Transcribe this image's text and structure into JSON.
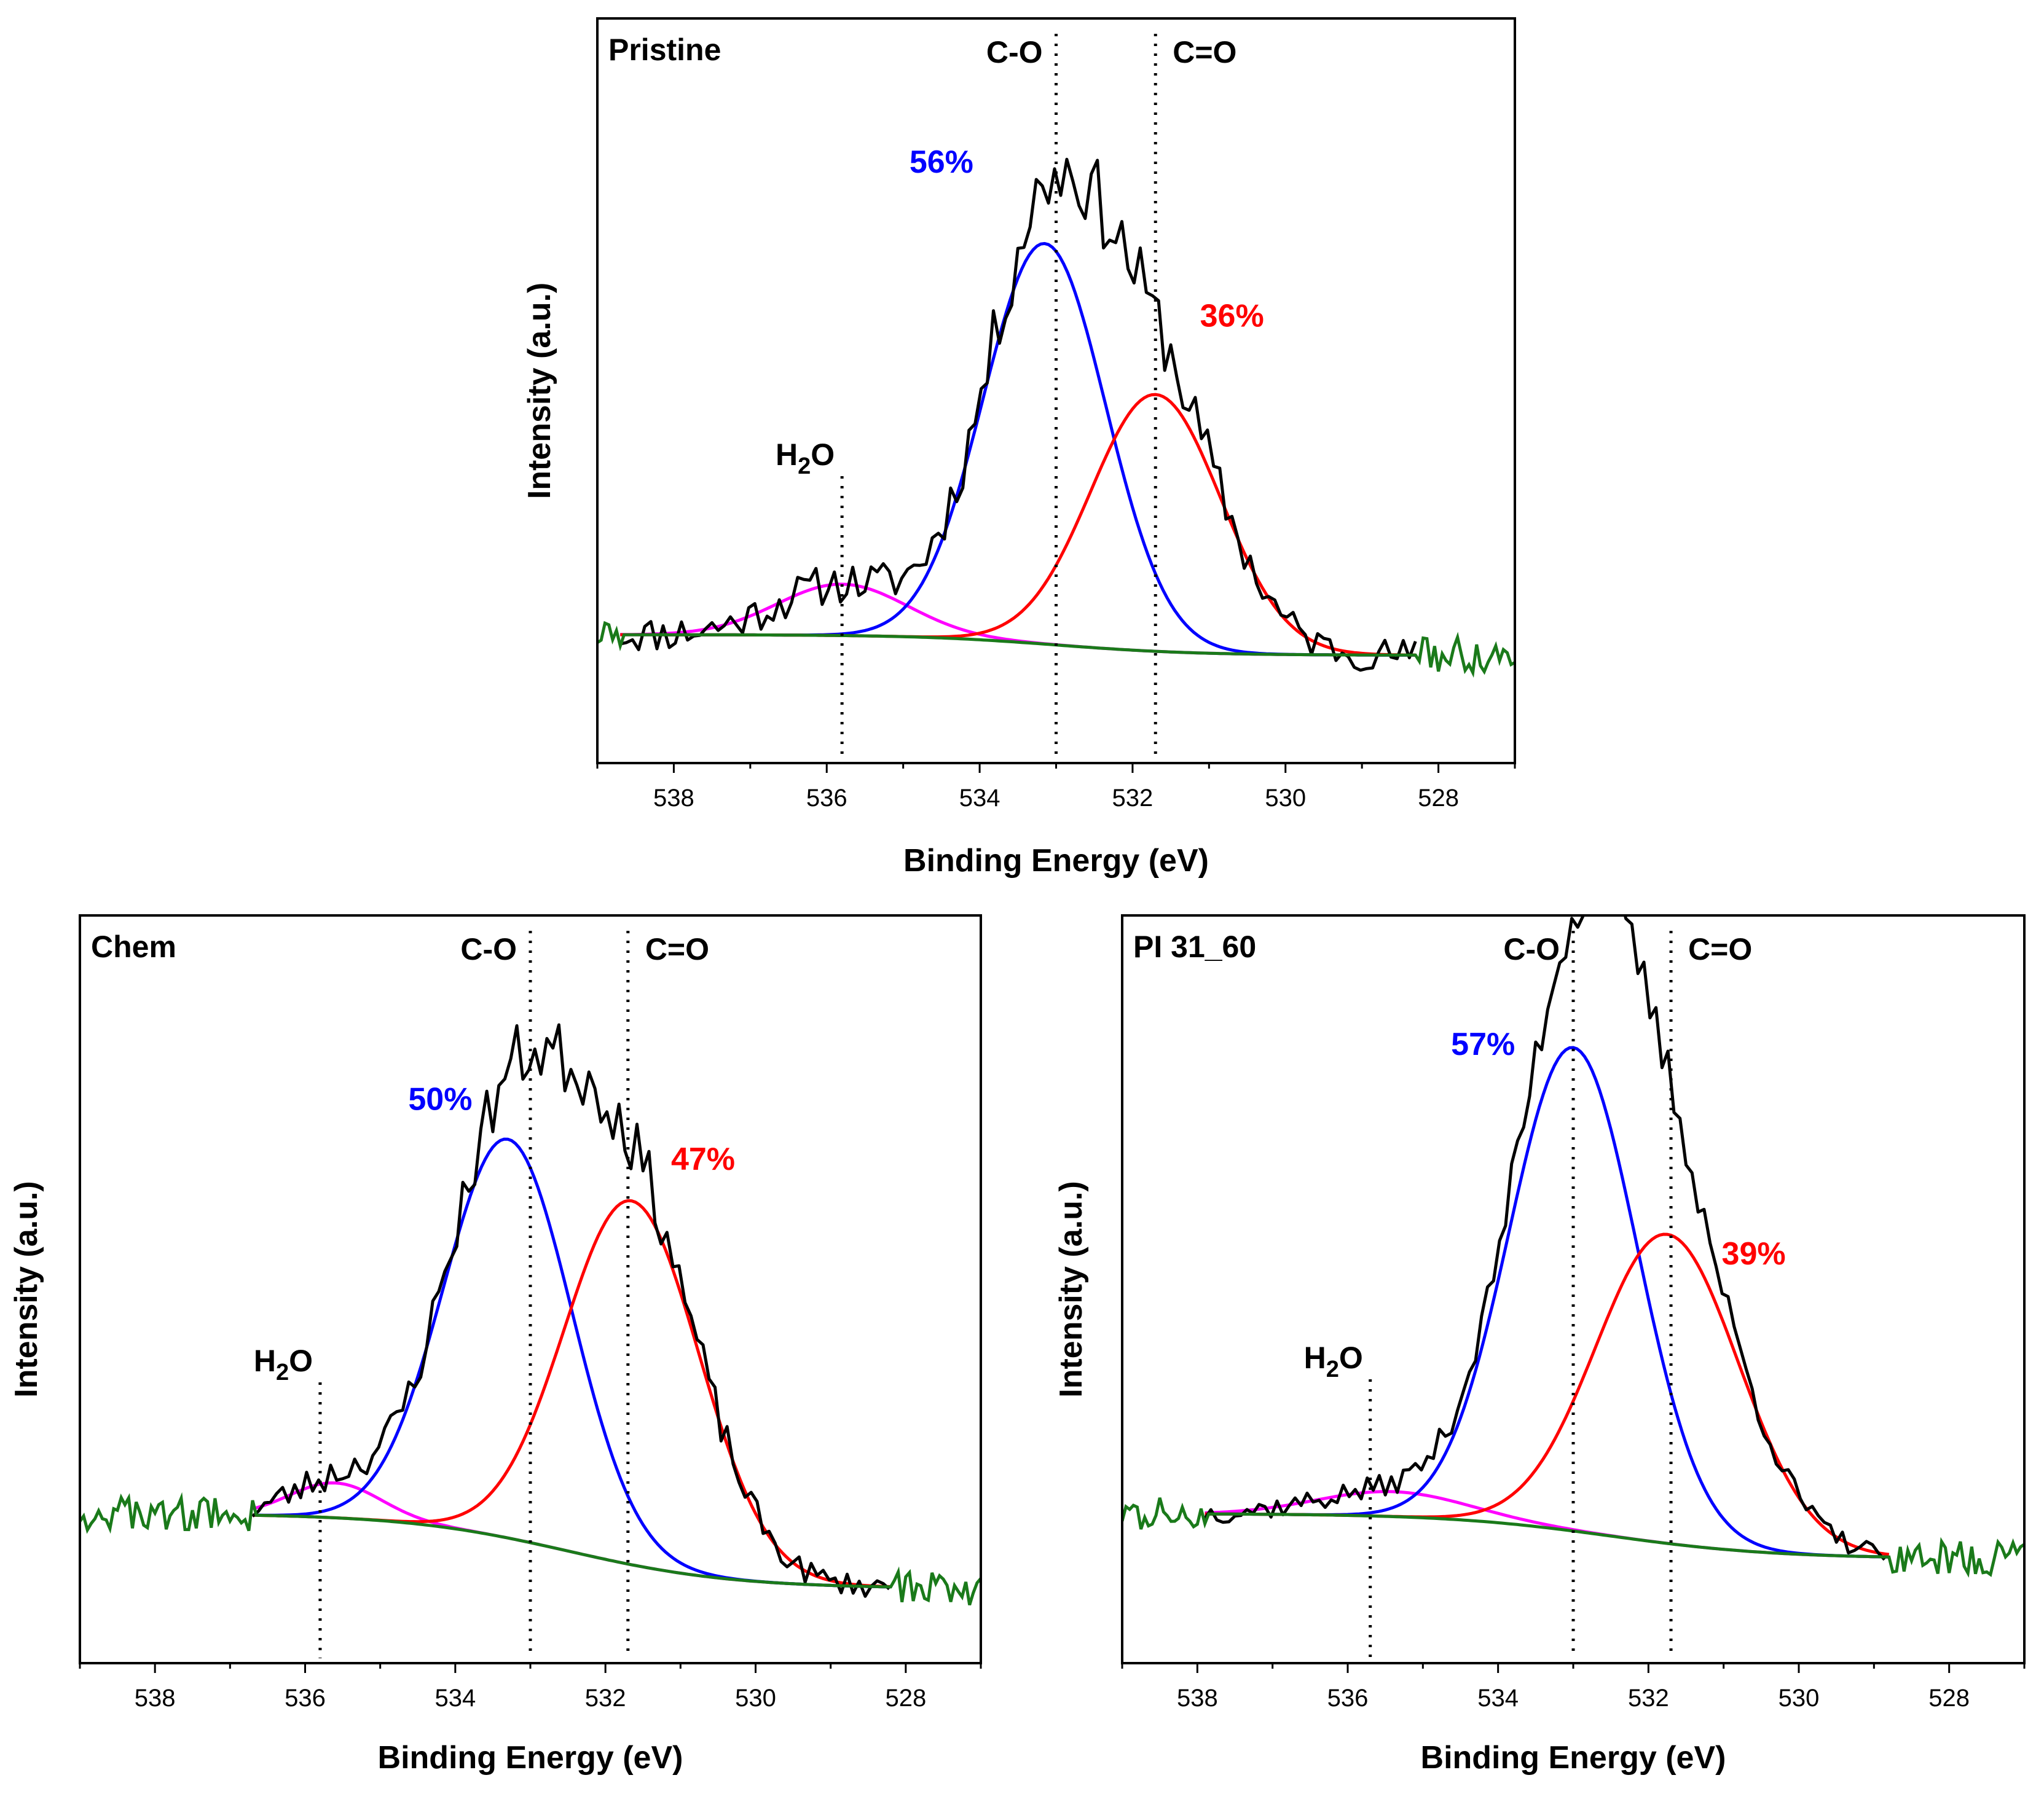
{
  "chart_data": [
    {
      "type": "line",
      "title": "Pristine",
      "xlabel": "Binding Energy (eV)",
      "ylabel": "Intensity (a.u.)",
      "xlim": [
        539,
        527
      ],
      "x_reversed": true,
      "ylim": [
        -0.25,
        1.2
      ],
      "xticks": [
        538,
        536,
        534,
        532,
        530,
        528
      ],
      "peak_markers": [
        {
          "label": "H2O",
          "sub": "2",
          "position": 535.8
        },
        {
          "label": "C-O",
          "position": 533.0
        },
        {
          "label": "C=O",
          "position": 531.7
        }
      ],
      "percent_labels": [
        {
          "text": "56%",
          "color": "#0000ff",
          "x": 534.5,
          "y": 0.9
        },
        {
          "text": "36%",
          "color": "#ff0000",
          "x": 530.7,
          "y": 0.6
        }
      ],
      "components": [
        {
          "name": "H2O",
          "color": "#ff00ff",
          "center": 535.8,
          "height": 0.1,
          "sigma": 0.85
        },
        {
          "name": "C-O",
          "color": "#0000ff",
          "center": 533.15,
          "height": 0.78,
          "sigma": 0.8
        },
        {
          "name": "C=O",
          "color": "#ff0000",
          "center": 531.7,
          "height": 0.5,
          "sigma": 0.85
        }
      ],
      "fit_range": [
        538.7,
        528.3
      ],
      "background": {
        "color": "#1a7a1a",
        "left_level": 0.0,
        "right_level": -0.04,
        "step_center": 533.0,
        "step_width": 0.9,
        "x_range": [
          539,
          527
        ]
      },
      "data_line": {
        "color": "#000000",
        "x_range": [
          538.7,
          528.3
        ],
        "noise": 0.035,
        "seed": 11
      }
    },
    {
      "type": "line",
      "title": "Chem",
      "xlabel": "Binding Energy (eV)",
      "ylabel": "Intensity (a.u.)",
      "xlim": [
        539,
        527
      ],
      "x_reversed": true,
      "ylim": [
        -0.3,
        1.2
      ],
      "xticks": [
        538,
        536,
        534,
        532,
        530,
        528
      ],
      "peak_markers": [
        {
          "label": "H2O",
          "sub": "2",
          "position": 535.8
        },
        {
          "label": "C-O",
          "position": 533.0
        },
        {
          "label": "C=O",
          "position": 531.7
        }
      ],
      "percent_labels": [
        {
          "text": "50%",
          "color": "#0000ff",
          "x": 534.2,
          "y": 0.81
        },
        {
          "text": "47%",
          "color": "#ff0000",
          "x": 530.7,
          "y": 0.69
        }
      ],
      "components": [
        {
          "name": "H2O",
          "color": "#ff00ff",
          "center": 535.6,
          "height": 0.07,
          "sigma": 0.6
        },
        {
          "name": "C-O",
          "color": "#0000ff",
          "center": 533.3,
          "height": 0.8,
          "sigma": 0.85
        },
        {
          "name": "C=O",
          "color": "#ff0000",
          "center": 531.65,
          "height": 0.73,
          "sigma": 0.9
        }
      ],
      "fit_range": [
        536.7,
        528.2
      ],
      "background": {
        "color": "#1a7a1a",
        "left_level": 0.0,
        "right_level": -0.15,
        "step_center": 532.5,
        "step_width": 1.1,
        "x_range": [
          539,
          527
        ]
      },
      "data_line": {
        "color": "#000000",
        "x_range": [
          536.7,
          528.2
        ],
        "noise": 0.03,
        "seed": 23
      }
    },
    {
      "type": "line",
      "title": "PI 31_60",
      "xlabel": "Binding Energy (eV)",
      "ylabel": "Intensity (a.u.)",
      "xlim": [
        539,
        527
      ],
      "x_reversed": true,
      "ylim": [
        -0.3,
        1.2
      ],
      "xticks": [
        538,
        536,
        534,
        532,
        530,
        528
      ],
      "peak_markers": [
        {
          "label": "H2O",
          "sub": "2",
          "position": 535.7
        },
        {
          "label": "C-O",
          "position": 533.0
        },
        {
          "label": "C=O",
          "position": 531.7
        }
      ],
      "percent_labels": [
        {
          "text": "57%",
          "color": "#0000ff",
          "x": 534.2,
          "y": 0.92
        },
        {
          "text": "39%",
          "color": "#ff0000",
          "x": 530.6,
          "y": 0.5
        }
      ],
      "components": [
        {
          "name": "H2O",
          "color": "#ff00ff",
          "center": 535.4,
          "height": 0.05,
          "sigma": 1.0
        },
        {
          "name": "C-O",
          "color": "#0000ff",
          "center": 533.0,
          "height": 0.97,
          "sigma": 0.85
        },
        {
          "name": "C=O",
          "color": "#ff0000",
          "center": 531.75,
          "height": 0.62,
          "sigma": 0.95
        }
      ],
      "fit_range": [
        537.9,
        528.8
      ],
      "background": {
        "color": "#1a7a1a",
        "left_level": 0.0,
        "right_level": -0.09,
        "step_center": 532.5,
        "step_width": 1.1,
        "x_range": [
          539,
          527
        ]
      },
      "data_line": {
        "color": "#000000",
        "x_range": [
          537.9,
          528.8
        ],
        "noise": 0.022,
        "seed": 37
      }
    }
  ]
}
